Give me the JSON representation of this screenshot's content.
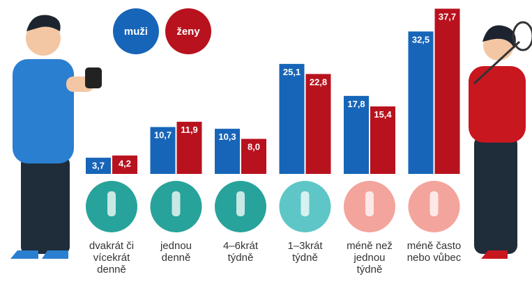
{
  "chart_data": {
    "type": "bar",
    "categories": [
      "dvakrát či\nvícekrát\ndenně",
      "jednou\ndenně",
      "4–6krát\ntýdně",
      "1–3krát\ntýdně",
      "méně než\njednou\ntýdně",
      "méně často\nnebo vůbec"
    ],
    "series": [
      {
        "name": "muži",
        "color": "#1765b8",
        "values": [
          3.7,
          10.7,
          10.3,
          25.1,
          17.8,
          32.5
        ],
        "value_labels": [
          "3,7",
          "10,7",
          "10,3",
          "25,1",
          "17,8",
          "32,5"
        ]
      },
      {
        "name": "ženy",
        "color": "#b8121e",
        "values": [
          4.2,
          11.9,
          8.0,
          22.8,
          15.4,
          37.7
        ],
        "value_labels": [
          "4,2",
          "11,9",
          "8,0",
          "22,8",
          "15,4",
          "37,7"
        ]
      }
    ]
  }
}
